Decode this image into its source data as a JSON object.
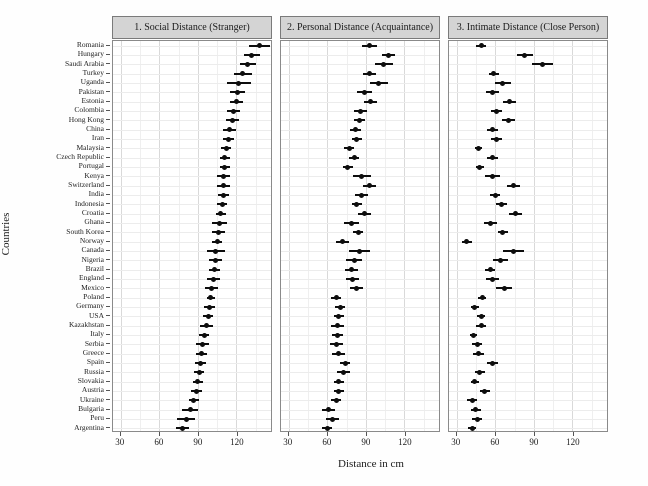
{
  "chart_data": {
    "type": "scatter",
    "subtype": "dot-plot-with-error-bars",
    "xlabel": "Distance in cm",
    "ylabel": "Countries",
    "x_ticks": [
      30,
      60,
      90,
      120
    ],
    "x_minor_gridlines": [
      45,
      75,
      105,
      135
    ],
    "x_domain": [
      24,
      147
    ],
    "grid": true,
    "legend_position": "none",
    "point_color": "#0d0d0d",
    "strip_background": "#d4d4d4",
    "strip_border": "#7a7a7a",
    "panel_border": "#8a8a8a",
    "major_grid_color": "#d9d9d9",
    "minor_grid_color": "#efefef",
    "facets": [
      {
        "label": "1. Social Distance (Stranger)",
        "key": "social"
      },
      {
        "label": "2. Personal Distance (Acquaintance)",
        "key": "personal"
      },
      {
        "label": "3. Intimate Distance (Close Person)",
        "key": "intimate"
      }
    ],
    "value_note": "values are mean preferred distance in cm; moe is half-width of the error bar in cm",
    "rows": [
      {
        "country": "Romania",
        "social": [
          138,
          8
        ],
        "personal": [
          93,
          6
        ],
        "intimate": [
          49,
          4
        ]
      },
      {
        "country": "Hungary",
        "social": [
          132,
          6
        ],
        "personal": [
          108,
          5
        ],
        "intimate": [
          83,
          6
        ]
      },
      {
        "country": "Saudi Arabia",
        "social": [
          129,
          6
        ],
        "personal": [
          104,
          7
        ],
        "intimate": [
          97,
          8
        ]
      },
      {
        "country": "Turkey",
        "social": [
          125,
          7
        ],
        "personal": [
          93,
          5
        ],
        "intimate": [
          59,
          4
        ]
      },
      {
        "country": "Uganda",
        "social": [
          122,
          9
        ],
        "personal": [
          100,
          7
        ],
        "intimate": [
          66,
          6
        ]
      },
      {
        "country": "Pakistan",
        "social": [
          121,
          6
        ],
        "personal": [
          89,
          6
        ],
        "intimate": [
          58,
          5
        ]
      },
      {
        "country": "Estonia",
        "social": [
          120,
          5
        ],
        "personal": [
          94,
          5
        ],
        "intimate": [
          71,
          5
        ]
      },
      {
        "country": "Colombia",
        "social": [
          118,
          5
        ],
        "personal": [
          86,
          5
        ],
        "intimate": [
          61,
          4
        ]
      },
      {
        "country": "Hong Kong",
        "social": [
          117,
          5
        ],
        "personal": [
          85,
          4
        ],
        "intimate": [
          70,
          5
        ]
      },
      {
        "country": "China",
        "social": [
          115,
          5
        ],
        "personal": [
          82,
          4
        ],
        "intimate": [
          58,
          4
        ]
      },
      {
        "country": "Iran",
        "social": [
          114,
          4
        ],
        "personal": [
          83,
          4
        ],
        "intimate": [
          61,
          4
        ]
      },
      {
        "country": "Malaysia",
        "social": [
          112,
          4
        ],
        "personal": [
          77,
          4
        ],
        "intimate": [
          47,
          3
        ]
      },
      {
        "country": "Czech Republic",
        "social": [
          111,
          4
        ],
        "personal": [
          81,
          4
        ],
        "intimate": [
          58,
          4
        ]
      },
      {
        "country": "Portugal",
        "social": [
          111,
          4
        ],
        "personal": [
          76,
          4
        ],
        "intimate": [
          48,
          3
        ]
      },
      {
        "country": "Kenya",
        "social": [
          110,
          5
        ],
        "personal": [
          87,
          7
        ],
        "intimate": [
          58,
          6
        ]
      },
      {
        "country": "Switzerland",
        "social": [
          110,
          5
        ],
        "personal": [
          93,
          5
        ],
        "intimate": [
          74,
          5
        ]
      },
      {
        "country": "India",
        "social": [
          110,
          4
        ],
        "personal": [
          87,
          5
        ],
        "intimate": [
          60,
          4
        ]
      },
      {
        "country": "Indonesia",
        "social": [
          109,
          4
        ],
        "personal": [
          83,
          4
        ],
        "intimate": [
          65,
          4
        ]
      },
      {
        "country": "Croatia",
        "social": [
          108,
          4
        ],
        "personal": [
          89,
          5
        ],
        "intimate": [
          76,
          5
        ]
      },
      {
        "country": "Ghana",
        "social": [
          107,
          6
        ],
        "personal": [
          79,
          6
        ],
        "intimate": [
          56,
          5
        ]
      },
      {
        "country": "South Korea",
        "social": [
          106,
          5
        ],
        "personal": [
          84,
          4
        ],
        "intimate": [
          66,
          4
        ]
      },
      {
        "country": "Norway",
        "social": [
          105,
          4
        ],
        "personal": [
          72,
          5
        ],
        "intimate": [
          38,
          4
        ]
      },
      {
        "country": "Canada",
        "social": [
          104,
          7
        ],
        "personal": [
          85,
          8
        ],
        "intimate": [
          74,
          8
        ]
      },
      {
        "country": "Nigeria",
        "social": [
          104,
          5
        ],
        "personal": [
          81,
          6
        ],
        "intimate": [
          64,
          6
        ]
      },
      {
        "country": "Brazil",
        "social": [
          103,
          4
        ],
        "personal": [
          79,
          5
        ],
        "intimate": [
          56,
          4
        ]
      },
      {
        "country": "England",
        "social": [
          102,
          5
        ],
        "personal": [
          80,
          5
        ],
        "intimate": [
          58,
          5
        ]
      },
      {
        "country": "Mexico",
        "social": [
          101,
          5
        ],
        "personal": [
          83,
          5
        ],
        "intimate": [
          67,
          6
        ]
      },
      {
        "country": "Poland",
        "social": [
          100,
          3
        ],
        "personal": [
          67,
          4
        ],
        "intimate": [
          50,
          3
        ]
      },
      {
        "country": "Germany",
        "social": [
          99,
          4
        ],
        "personal": [
          70,
          4
        ],
        "intimate": [
          44,
          3
        ]
      },
      {
        "country": "USA",
        "social": [
          98,
          4
        ],
        "personal": [
          69,
          4
        ],
        "intimate": [
          49,
          3
        ]
      },
      {
        "country": "Kazakhstan",
        "social": [
          97,
          5
        ],
        "personal": [
          68,
          5
        ],
        "intimate": [
          49,
          4
        ]
      },
      {
        "country": "Italy",
        "social": [
          95,
          4
        ],
        "personal": [
          68,
          4
        ],
        "intimate": [
          43,
          3
        ]
      },
      {
        "country": "Serbia",
        "social": [
          94,
          5
        ],
        "personal": [
          67,
          5
        ],
        "intimate": [
          46,
          4
        ]
      },
      {
        "country": "Greece",
        "social": [
          93,
          4
        ],
        "personal": [
          69,
          5
        ],
        "intimate": [
          47,
          4
        ]
      },
      {
        "country": "Spain",
        "social": [
          92,
          4
        ],
        "personal": [
          74,
          4
        ],
        "intimate": [
          58,
          4
        ]
      },
      {
        "country": "Russia",
        "social": [
          91,
          4
        ],
        "personal": [
          73,
          5
        ],
        "intimate": [
          48,
          4
        ]
      },
      {
        "country": "Slovakia",
        "social": [
          90,
          4
        ],
        "personal": [
          69,
          4
        ],
        "intimate": [
          44,
          3
        ]
      },
      {
        "country": "Austria",
        "social": [
          89,
          4
        ],
        "personal": [
          69,
          4
        ],
        "intimate": [
          52,
          4
        ]
      },
      {
        "country": "Ukraine",
        "social": [
          87,
          4
        ],
        "personal": [
          67,
          4
        ],
        "intimate": [
          42,
          4
        ]
      },
      {
        "country": "Bulgaria",
        "social": [
          84,
          6
        ],
        "personal": [
          61,
          5
        ],
        "intimate": [
          45,
          4
        ]
      },
      {
        "country": "Peru",
        "social": [
          81,
          7
        ],
        "personal": [
          64,
          5
        ],
        "intimate": [
          46,
          4
        ]
      },
      {
        "country": "Argentina",
        "social": [
          78,
          5
        ],
        "personal": [
          60,
          4
        ],
        "intimate": [
          42,
          3
        ]
      }
    ]
  }
}
